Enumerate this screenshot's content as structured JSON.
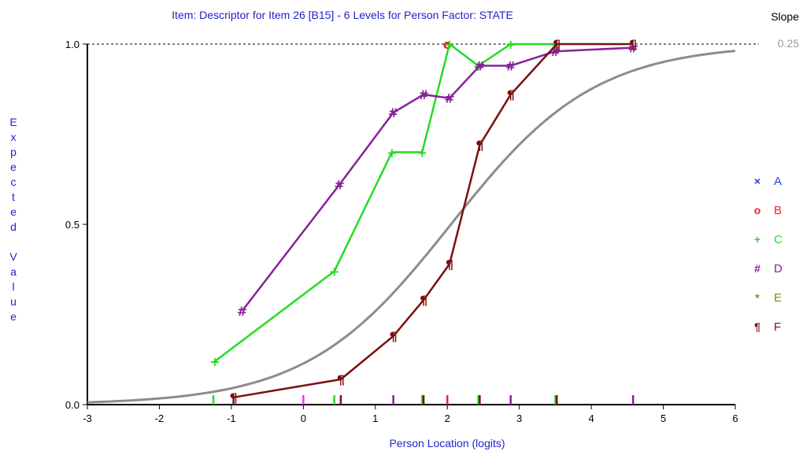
{
  "chart_data": {
    "type": "line",
    "title": "Item: Descriptor for Item 26 [B15] - 6 Levels for Person Factor: STATE",
    "xlabel": "Person Location (logits)",
    "ylabel": "Expected Value",
    "xlim": [
      -3,
      6
    ],
    "ylim": [
      0,
      1
    ],
    "x_ticks": [
      "-3",
      "-2",
      "-1",
      "0",
      "1",
      "2",
      "3",
      "4",
      "5",
      "6"
    ],
    "y_ticks": [
      "0.0",
      "0.5",
      "1.0"
    ],
    "reference_line_y": 1.0,
    "slope_label": "Slope",
    "slope_value": "0.25",
    "legend_position": "right",
    "expected_curve": {
      "location": 2.05,
      "slope": 1.0,
      "color": "#8c8c8c"
    },
    "series": [
      {
        "name": "A",
        "marker": "×",
        "color": "#2244dd",
        "points": []
      },
      {
        "name": "B",
        "marker": "o",
        "color": "#ee2222",
        "points": [
          [
            2.0,
            1.0
          ]
        ]
      },
      {
        "name": "C",
        "marker": "+",
        "color": "#22dd22",
        "points": [
          [
            -1.23,
            0.12
          ],
          [
            0.43,
            0.37
          ],
          [
            1.23,
            0.7
          ],
          [
            1.65,
            0.7
          ],
          [
            2.03,
            1.0
          ],
          [
            2.43,
            0.94
          ],
          [
            2.88,
            1.0
          ],
          [
            3.5,
            1.0
          ]
        ]
      },
      {
        "name": "D",
        "marker": "#",
        "color": "#882299",
        "points": [
          [
            -0.85,
            0.26
          ],
          [
            0.5,
            0.61
          ],
          [
            1.25,
            0.81
          ],
          [
            1.67,
            0.86
          ],
          [
            2.03,
            0.85
          ],
          [
            2.45,
            0.94
          ],
          [
            2.88,
            0.94
          ],
          [
            3.5,
            0.98
          ],
          [
            4.58,
            0.99
          ]
        ]
      },
      {
        "name": "E",
        "marker": "*",
        "color": "#888822",
        "points": []
      },
      {
        "name": "F",
        "marker": "¶",
        "color": "#7a1010",
        "points": [
          [
            -0.97,
            0.02
          ],
          [
            0.52,
            0.07
          ],
          [
            1.25,
            0.19
          ],
          [
            1.67,
            0.29
          ],
          [
            2.03,
            0.39
          ],
          [
            2.45,
            0.72
          ],
          [
            2.88,
            0.86
          ],
          [
            3.52,
            1.0
          ],
          [
            4.58,
            1.0
          ]
        ]
      }
    ],
    "rug_marks": [
      {
        "x": -1.25,
        "color": "#22dd22"
      },
      {
        "x": -0.97,
        "color": "#7a1010"
      },
      {
        "x": 0.0,
        "color": "#ee33ee"
      },
      {
        "x": 0.43,
        "color": "#22dd22"
      },
      {
        "x": 0.52,
        "color": "#7a1010"
      },
      {
        "x": 1.25,
        "color": "#882299"
      },
      {
        "x": 1.65,
        "color": "#22dd22"
      },
      {
        "x": 1.67,
        "color": "#7a1010"
      },
      {
        "x": 2.0,
        "color": "#ee2222"
      },
      {
        "x": 2.43,
        "color": "#22dd22"
      },
      {
        "x": 2.45,
        "color": "#7a1010"
      },
      {
        "x": 2.88,
        "color": "#882299"
      },
      {
        "x": 3.5,
        "color": "#22dd22"
      },
      {
        "x": 3.52,
        "color": "#7a1010"
      },
      {
        "x": 4.58,
        "color": "#882299"
      }
    ]
  }
}
